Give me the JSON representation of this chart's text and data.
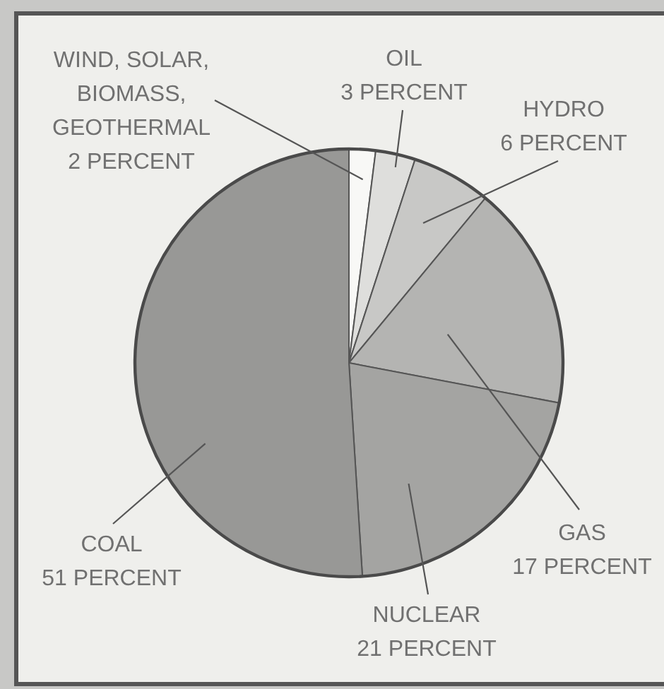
{
  "chart_data": {
    "type": "pie",
    "categories": [
      "WIND, SOLAR, BIOMASS, GEOTHERMAL",
      "OIL",
      "HYDRO",
      "GAS",
      "NUCLEAR",
      "COAL"
    ],
    "values": [
      2,
      3,
      6,
      17,
      21,
      51
    ],
    "colors": [
      "#f8f8f6",
      "#dededc",
      "#c8c8c6",
      "#b4b4b2",
      "#a4a4a2",
      "#989896"
    ],
    "value_labels": [
      "2 PERCENT",
      "3 PERCENT",
      "6 PERCENT",
      "17 PERCENT",
      "21 PERCENT",
      "51 PERCENT"
    ],
    "legend": false
  }
}
